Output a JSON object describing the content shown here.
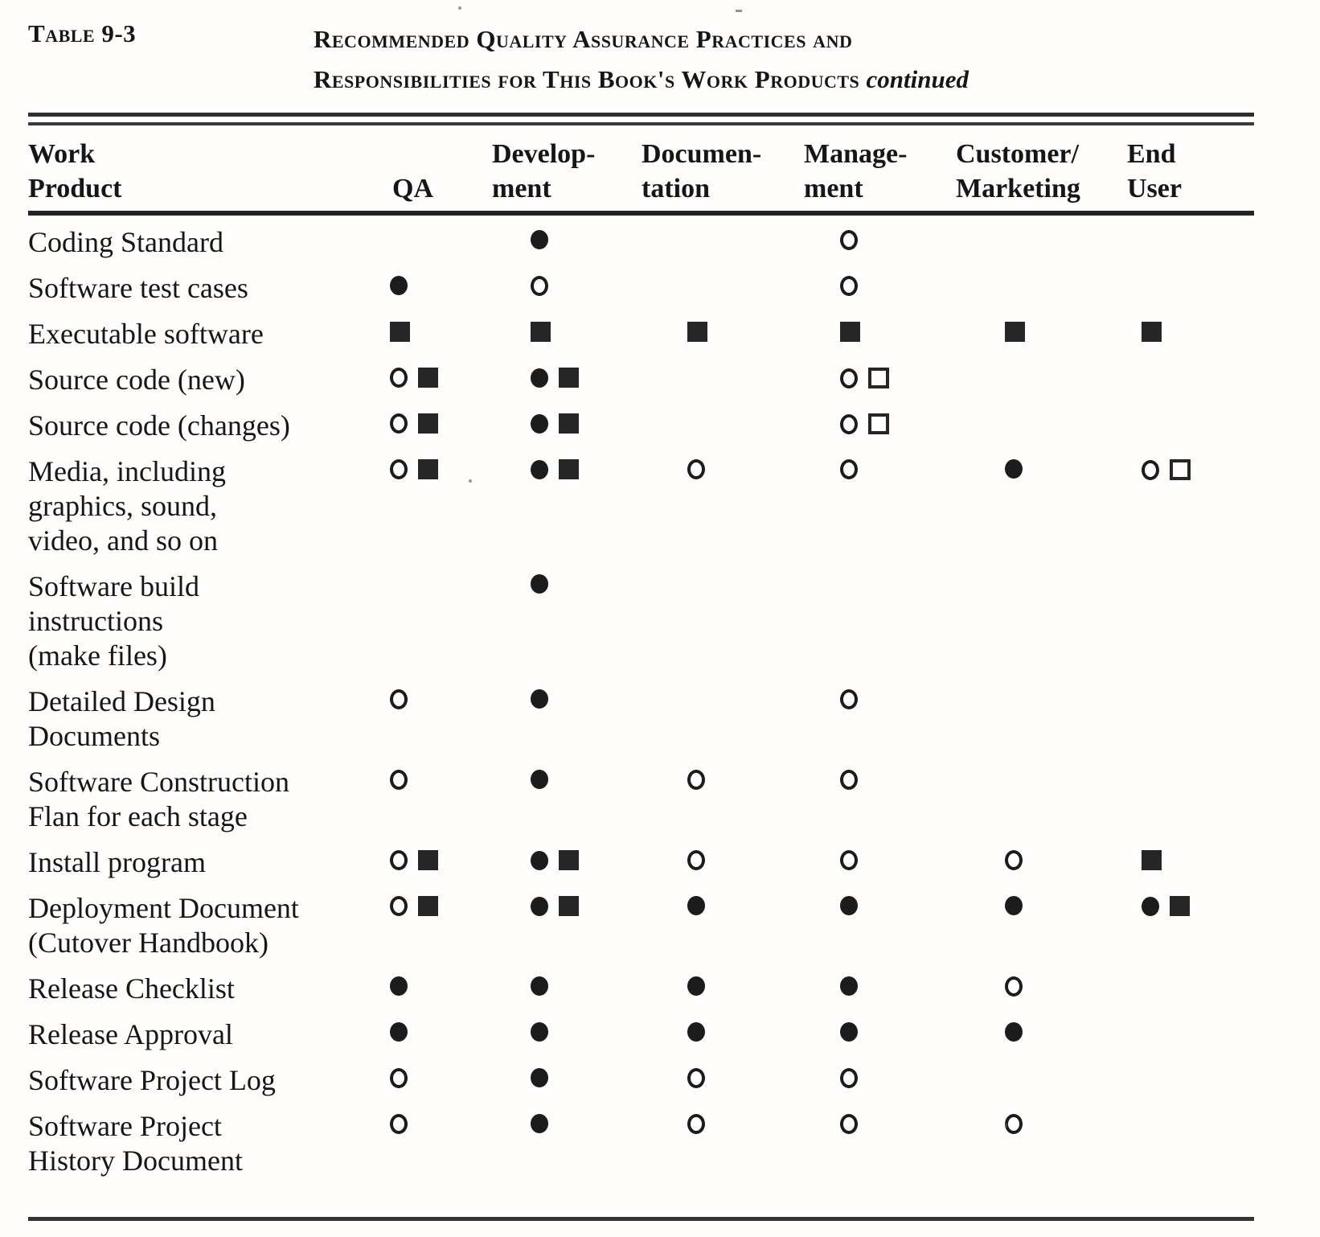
{
  "table": {
    "label": "Table 9-3",
    "title_line1": "Recommended Quality Assurance Practices and",
    "title_line2": "Responsibilities for This Book's Work Products",
    "title_continued": "continued",
    "columns": [
      {
        "key": "product",
        "line1": "Work",
        "line2": "Product"
      },
      {
        "key": "qa",
        "line1": "",
        "line2": "QA"
      },
      {
        "key": "development",
        "line1": "Develop-",
        "line2": "ment"
      },
      {
        "key": "documentation",
        "line1": "Documen-",
        "line2": "tation"
      },
      {
        "key": "management",
        "line1": "Manage-",
        "line2": "ment"
      },
      {
        "key": "customer_marketing",
        "line1": "Customer/",
        "line2": "Marketing"
      },
      {
        "key": "end_user",
        "line1": "End",
        "line2": "User"
      }
    ],
    "symbol_types": [
      "filled-circle",
      "open-circle",
      "filled-square",
      "open-square"
    ],
    "rows": [
      {
        "product_lines": [
          "Coding Standard"
        ],
        "symbols": {
          "development": [
            "filled-circle"
          ],
          "management": [
            "open-circle"
          ]
        }
      },
      {
        "product_lines": [
          "Software test cases"
        ],
        "symbols": {
          "qa": [
            "filled-circle"
          ],
          "development": [
            "open-circle"
          ],
          "management": [
            "open-circle"
          ]
        }
      },
      {
        "product_lines": [
          "Executable software"
        ],
        "symbols": {
          "qa": [
            "filled-square"
          ],
          "development": [
            "filled-square"
          ],
          "documentation": [
            "filled-square"
          ],
          "management": [
            "filled-square"
          ],
          "customer_marketing": [
            "filled-square"
          ],
          "end_user": [
            "filled-square"
          ]
        }
      },
      {
        "product_lines": [
          "Source code (new)"
        ],
        "symbols": {
          "qa": [
            "open-circle",
            "filled-square"
          ],
          "development": [
            "filled-circle",
            "filled-square"
          ],
          "management": [
            "open-circle",
            "open-square"
          ]
        }
      },
      {
        "product_lines": [
          "Source code (changes)"
        ],
        "symbols": {
          "qa": [
            "open-circle",
            "filled-square"
          ],
          "development": [
            "filled-circle",
            "filled-square"
          ],
          "management": [
            "open-circle",
            "open-square"
          ]
        }
      },
      {
        "product_lines": [
          "Media, including",
          "graphics, sound,",
          "video, and so on"
        ],
        "symbols": {
          "qa": [
            "open-circle",
            "filled-square"
          ],
          "development": [
            "filled-circle",
            "filled-square"
          ],
          "documentation": [
            "open-circle"
          ],
          "management": [
            "open-circle"
          ],
          "customer_marketing": [
            "filled-circle"
          ],
          "end_user": [
            "open-circle",
            "open-square"
          ]
        }
      },
      {
        "product_lines": [
          "Software  build",
          "instructions",
          "(make files)"
        ],
        "symbols": {
          "development": [
            "filled-circle"
          ]
        }
      },
      {
        "product_lines": [
          "Detailed Design",
          "Documents"
        ],
        "symbols": {
          "qa": [
            "open-circle"
          ],
          "development": [
            "filled-circle"
          ],
          "management": [
            "open-circle"
          ]
        }
      },
      {
        "product_lines": [
          "Software  Construction",
          "Flan for each stage"
        ],
        "symbols": {
          "qa": [
            "open-circle"
          ],
          "development": [
            "filled-circle"
          ],
          "documentation": [
            "open-circle"
          ],
          "management": [
            "open-circle"
          ]
        }
      },
      {
        "product_lines": [
          "Install program"
        ],
        "symbols": {
          "qa": [
            "open-circle",
            "filled-square"
          ],
          "development": [
            "filled-circle",
            "filled-square"
          ],
          "documentation": [
            "open-circle"
          ],
          "management": [
            "open-circle"
          ],
          "customer_marketing": [
            "open-circle"
          ],
          "end_user": [
            "filled-square"
          ]
        }
      },
      {
        "product_lines": [
          "Deployment Document",
          "(Cutover  Handbook)"
        ],
        "symbols": {
          "qa": [
            "open-circle",
            "filled-square"
          ],
          "development": [
            "filled-circle",
            "filled-square"
          ],
          "documentation": [
            "filled-circle"
          ],
          "management": [
            "filled-circle"
          ],
          "customer_marketing": [
            "filled-circle"
          ],
          "end_user": [
            "filled-circle",
            "filled-square"
          ]
        }
      },
      {
        "product_lines": [
          "Release  Checklist"
        ],
        "symbols": {
          "qa": [
            "filled-circle"
          ],
          "development": [
            "filled-circle"
          ],
          "documentation": [
            "filled-circle"
          ],
          "management": [
            "filled-circle"
          ],
          "customer_marketing": [
            "open-circle"
          ]
        }
      },
      {
        "product_lines": [
          "Release  Approval"
        ],
        "symbols": {
          "qa": [
            "filled-circle"
          ],
          "development": [
            "filled-circle"
          ],
          "documentation": [
            "filled-circle"
          ],
          "management": [
            "filled-circle"
          ],
          "customer_marketing": [
            "filled-circle"
          ]
        }
      },
      {
        "product_lines": [
          "Software Project Log"
        ],
        "symbols": {
          "qa": [
            "open-circle"
          ],
          "development": [
            "filled-circle"
          ],
          "documentation": [
            "open-circle"
          ],
          "management": [
            "open-circle"
          ]
        }
      },
      {
        "product_lines": [
          "Software Project",
          "History Document"
        ],
        "symbols": {
          "qa": [
            "open-circle"
          ],
          "development": [
            "filled-circle"
          ],
          "documentation": [
            "open-circle"
          ],
          "management": [
            "open-circle"
          ],
          "customer_marketing": [
            "open-circle"
          ]
        }
      }
    ]
  }
}
